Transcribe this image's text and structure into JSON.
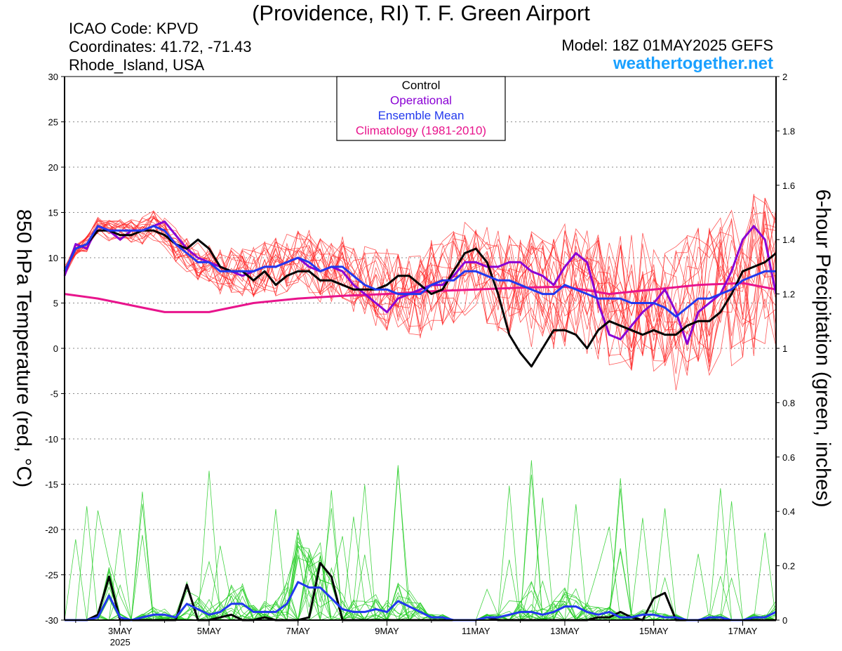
{
  "header": {
    "title": "(Providence, RI) T. F. Green Airport",
    "icao": "ICAO Code: KPVD",
    "coordinates": "Coordinates: 41.72, -71.43",
    "region": "Rhode_Island, USA",
    "model": "Model: 18Z 01MAY2025 GEFS",
    "site": "weathertogether.net"
  },
  "colors": {
    "control": "#000000",
    "operational": "#8a00d4",
    "ensemble_mean": "#2238ee",
    "climatology": "#e8148c",
    "member_temp": "#ff2020",
    "member_precip": "#22cc22"
  },
  "chart_data": {
    "type": "line",
    "ylabel": "850 hPa Temperature (red, °C)",
    "y2label": "6-hour Precipitation (green, inches)",
    "ylim": [
      -30,
      30
    ],
    "y2lim": [
      0,
      2
    ],
    "yticks": [
      30,
      25,
      20,
      15,
      10,
      5,
      0,
      -5,
      -10,
      -15,
      -20,
      -25,
      -30
    ],
    "y2ticks": [
      2,
      1.8,
      1.6,
      1.4,
      1.2,
      1,
      0.8,
      0.6,
      0.4,
      0.2,
      0
    ],
    "x_range_days": [
      1.75,
      17.75
    ],
    "xticks": [
      {
        "day": 3,
        "label": "3MAY",
        "sublabel": "2025"
      },
      {
        "day": 5,
        "label": "5MAY"
      },
      {
        "day": 7,
        "label": "7MAY"
      },
      {
        "day": 9,
        "label": "9MAY"
      },
      {
        "day": 11,
        "label": "11MAY"
      },
      {
        "day": 13,
        "label": "13MAY"
      },
      {
        "day": 15,
        "label": "15MAY"
      },
      {
        "day": 17,
        "label": "17MAY"
      }
    ],
    "grid": "horizontal-dotted",
    "legend_position": "top-center",
    "legend": [
      {
        "label": "Control",
        "color": "#000000"
      },
      {
        "label": "Operational",
        "color": "#8a00d4"
      },
      {
        "label": "Ensemble Mean",
        "color": "#2238ee"
      },
      {
        "label": "Climatology (1981-2010)",
        "color": "#e8148c"
      }
    ],
    "series": [
      {
        "name": "Control",
        "axis": "temp",
        "x": [
          1.75,
          2,
          2.25,
          2.5,
          2.75,
          3,
          3.25,
          3.5,
          3.75,
          4,
          4.25,
          4.5,
          4.75,
          5,
          5.25,
          5.5,
          5.75,
          6,
          6.25,
          6.5,
          6.75,
          7,
          7.25,
          7.5,
          7.75,
          8,
          8.25,
          8.5,
          8.75,
          9,
          9.25,
          9.5,
          9.75,
          10,
          10.25,
          10.5,
          10.75,
          11,
          11.25,
          11.5,
          11.75,
          12,
          12.25,
          12.5,
          12.75,
          13,
          13.25,
          13.5,
          13.75,
          14,
          14.25,
          14.5,
          14.75,
          15,
          15.25,
          15.5,
          15.75,
          16,
          16.25,
          16.5,
          16.75,
          17,
          17.25,
          17.5,
          17.75
        ],
        "values": [
          8.5,
          11,
          11.5,
          13,
          13,
          12.5,
          12.5,
          13,
          13,
          12.5,
          11.5,
          11,
          12,
          11,
          9,
          8.5,
          8.5,
          7.5,
          8.5,
          7,
          8,
          8.5,
          8.5,
          7.5,
          7.5,
          7,
          6.5,
          6.5,
          6.5,
          7,
          8,
          8,
          7,
          6,
          6.5,
          8.5,
          10.5,
          11,
          9.5,
          6,
          1.5,
          -0.5,
          -2,
          0,
          2,
          2,
          1.5,
          0,
          2,
          3,
          2.5,
          2,
          1.5,
          2,
          1.5,
          1.5,
          2.5,
          3,
          3,
          4,
          6,
          8.5,
          9,
          9.5,
          10.5
        ]
      },
      {
        "name": "Operational",
        "axis": "temp",
        "x": [
          1.75,
          2,
          2.25,
          2.5,
          2.75,
          3,
          3.25,
          3.5,
          3.75,
          4,
          4.25,
          4.5,
          4.75,
          5,
          5.25,
          5.5,
          5.75,
          6,
          6.25,
          6.5,
          6.75,
          7,
          7.25,
          7.5,
          7.75,
          8,
          8.25,
          8.5,
          8.75,
          9,
          9.25,
          9.5,
          9.75,
          10,
          10.25,
          10.5,
          10.75,
          11,
          11.25,
          11.5,
          11.75,
          12,
          12.25,
          12.5,
          12.75,
          13,
          13.25,
          13.5,
          13.75,
          14,
          14.25,
          14.5,
          14.75,
          15,
          15.25,
          15.5,
          15.75,
          16,
          16.25,
          16.5,
          16.75,
          17,
          17.25,
          17.5,
          17.75
        ],
        "values": [
          8,
          11.5,
          11,
          13.5,
          13,
          12,
          13,
          13,
          13.5,
          14,
          12.5,
          11,
          10,
          9.5,
          9,
          8.5,
          8,
          8.5,
          9,
          9,
          9.5,
          10,
          9,
          8.5,
          9,
          8.5,
          7,
          6,
          5,
          4,
          5.5,
          6,
          6.5,
          7,
          7,
          8,
          9.5,
          9.5,
          9,
          9,
          9.5,
          9.5,
          8.5,
          8,
          7,
          9,
          10.5,
          9.5,
          5,
          1.5,
          1,
          2.5,
          4,
          5,
          6.5,
          4,
          0.5,
          4,
          5,
          6,
          8.5,
          12,
          13.5,
          12,
          6
        ]
      },
      {
        "name": "Ensemble Mean",
        "axis": "temp",
        "x": [
          1.75,
          2,
          2.25,
          2.5,
          2.75,
          3,
          3.25,
          3.5,
          3.75,
          4,
          4.25,
          4.5,
          4.75,
          5,
          5.25,
          5.5,
          5.75,
          6,
          6.25,
          6.5,
          6.75,
          7,
          7.25,
          7.5,
          7.75,
          8,
          8.25,
          8.5,
          8.75,
          9,
          9.25,
          9.5,
          9.75,
          10,
          10.25,
          10.5,
          10.75,
          11,
          11.25,
          11.5,
          11.75,
          12,
          12.25,
          12.5,
          12.75,
          13,
          13.25,
          13.5,
          13.75,
          14,
          14.25,
          14.5,
          14.75,
          15,
          15.25,
          15.5,
          15.75,
          16,
          16.25,
          16.5,
          16.75,
          17,
          17.25,
          17.5,
          17.75
        ],
        "values": [
          8.5,
          11,
          11.5,
          13.5,
          13,
          13,
          13,
          13,
          13.5,
          13,
          11.5,
          10.5,
          9.5,
          9.5,
          8.5,
          8.5,
          8.5,
          8.5,
          9,
          9,
          9.5,
          10,
          9.5,
          8.5,
          9,
          9,
          8,
          7,
          6.5,
          6.5,
          6,
          6,
          6,
          7,
          7.5,
          7.5,
          8.5,
          8.5,
          8,
          7.5,
          7.5,
          7,
          6.5,
          6,
          6,
          7,
          6.5,
          6,
          5.5,
          5.5,
          5.5,
          5,
          5,
          5,
          4.5,
          3.5,
          4.5,
          5.5,
          5.5,
          6,
          6.5,
          7.5,
          8,
          8.5,
          8.5
        ]
      },
      {
        "name": "Climatology (1981-2010)",
        "axis": "temp",
        "x": [
          1.75,
          2.5,
          3,
          3.5,
          4,
          4.5,
          5,
          6,
          7,
          8,
          9,
          10,
          11,
          12,
          13,
          14,
          15,
          16,
          17,
          17.75
        ],
        "values": [
          6,
          5.5,
          5,
          4.5,
          4,
          4,
          4,
          5,
          5.5,
          5.8,
          6,
          6.3,
          6.5,
          6.7,
          6.8,
          6,
          6.5,
          7,
          7.2,
          6.5
        ]
      },
      {
        "name": "Control",
        "axis": "precip",
        "x": [
          1.75,
          2,
          2.25,
          2.5,
          2.75,
          3,
          3.25,
          3.5,
          3.75,
          4,
          4.25,
          4.5,
          4.75,
          5,
          5.25,
          5.5,
          5.75,
          6,
          6.25,
          6.5,
          6.75,
          7,
          7.25,
          7.5,
          7.75,
          8,
          8.25,
          8.5,
          8.75,
          9,
          9.25,
          9.5,
          9.75,
          10,
          10.25,
          10.5,
          10.75,
          11,
          11.25,
          11.5,
          11.75,
          12,
          12.25,
          12.5,
          12.75,
          13,
          13.25,
          13.5,
          13.75,
          14,
          14.25,
          14.5,
          14.75,
          15,
          15.25,
          15.5,
          15.75,
          16,
          16.25,
          16.5,
          16.75,
          17,
          17.25,
          17.5,
          17.75
        ],
        "values": [
          0,
          0,
          0,
          0.02,
          0.16,
          0,
          0,
          0,
          0,
          0,
          0,
          0.13,
          0,
          0,
          0.01,
          0.02,
          0,
          0,
          0.01,
          0,
          0,
          0,
          0.01,
          0.21,
          0.16,
          0,
          0,
          0,
          0,
          0,
          0,
          0,
          0,
          0,
          0,
          0,
          0,
          0,
          0.01,
          0,
          0,
          0,
          0,
          0,
          0,
          0,
          0,
          0,
          0.01,
          0.01,
          0.03,
          0.01,
          0,
          0.08,
          0.1,
          0,
          0,
          0,
          0,
          0,
          0,
          0,
          0,
          0,
          0
        ]
      },
      {
        "name": "Ensemble Mean",
        "axis": "precip",
        "x": [
          1.75,
          2,
          2.25,
          2.5,
          2.75,
          3,
          3.25,
          3.5,
          3.75,
          4,
          4.25,
          4.5,
          4.75,
          5,
          5.25,
          5.5,
          5.75,
          6,
          6.25,
          6.5,
          6.75,
          7,
          7.25,
          7.5,
          7.75,
          8,
          8.25,
          8.5,
          8.75,
          9,
          9.25,
          9.5,
          9.75,
          10,
          10.25,
          10.5,
          10.75,
          11,
          11.25,
          11.5,
          11.75,
          12,
          12.25,
          12.5,
          12.75,
          13,
          13.25,
          13.5,
          13.75,
          14,
          14.25,
          14.5,
          14.75,
          15,
          15.25,
          15.5,
          15.75,
          16,
          16.25,
          16.5,
          16.75,
          17,
          17.25,
          17.5,
          17.75
        ],
        "values": [
          0,
          0,
          0,
          0.01,
          0.09,
          0.01,
          0,
          0.01,
          0.02,
          0.02,
          0.01,
          0.06,
          0.04,
          0.02,
          0.03,
          0.06,
          0.06,
          0.03,
          0.03,
          0.03,
          0.06,
          0.14,
          0.12,
          0.12,
          0.08,
          0.04,
          0.03,
          0.03,
          0.04,
          0.03,
          0.07,
          0.05,
          0.03,
          0.01,
          0.01,
          0,
          0,
          0,
          0.01,
          0.01,
          0.02,
          0.03,
          0.03,
          0.02,
          0.03,
          0.05,
          0.05,
          0.03,
          0.02,
          0.03,
          0.01,
          0.01,
          0.02,
          0.02,
          0.01,
          0.01,
          0,
          0,
          0.01,
          0.01,
          0,
          0,
          0.01,
          0.01,
          0.03
        ]
      }
    ]
  }
}
